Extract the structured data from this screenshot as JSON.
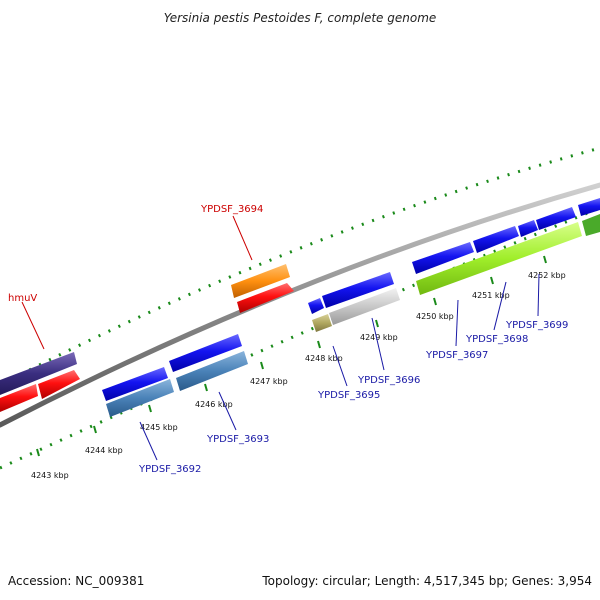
{
  "title": "Yersinia pestis Pestoides F, complete genome",
  "footer": {
    "accession": "Accession: NC_009381",
    "summary": "Topology: circular; Length: 4,517,345 bp; Genes: 3,954"
  },
  "ticks": [
    "4243 kbp",
    "4244 kbp",
    "4245 kbp",
    "4246 kbp",
    "4247 kbp",
    "4248 kbp",
    "4249 kbp",
    "4250 kbp",
    "4251 kbp",
    "4252 kbp"
  ],
  "genes": [
    {
      "id": "hmuV",
      "label": "hmuV",
      "color": "#cc0000"
    },
    {
      "id": "YPDSF_3694",
      "label": "YPDSF_3694",
      "color": "#cc0000"
    },
    {
      "id": "YPDSF_3692",
      "label": "YPDSF_3692",
      "color": "#1a1aa6"
    },
    {
      "id": "YPDSF_3693",
      "label": "YPDSF_3693",
      "color": "#1a1aa6"
    },
    {
      "id": "YPDSF_3695",
      "label": "YPDSF_3695",
      "color": "#1a1aa6"
    },
    {
      "id": "YPDSF_3696",
      "label": "YPDSF_3696",
      "color": "#1a1aa6"
    },
    {
      "id": "YPDSF_3697",
      "label": "YPDSF_3697",
      "color": "#1a1aa6"
    },
    {
      "id": "YPDSF_3698",
      "label": "YPDSF_3698",
      "color": "#1a1aa6"
    },
    {
      "id": "YPDSF_3699",
      "label": "YPDSF_3699",
      "color": "#1a1aa6"
    }
  ],
  "colors": {
    "forward_cds": "#1010e0",
    "reverse_cds": "#ee0a0a",
    "backbone": "#8a8a8a",
    "ticks": "#1a8a1a"
  }
}
